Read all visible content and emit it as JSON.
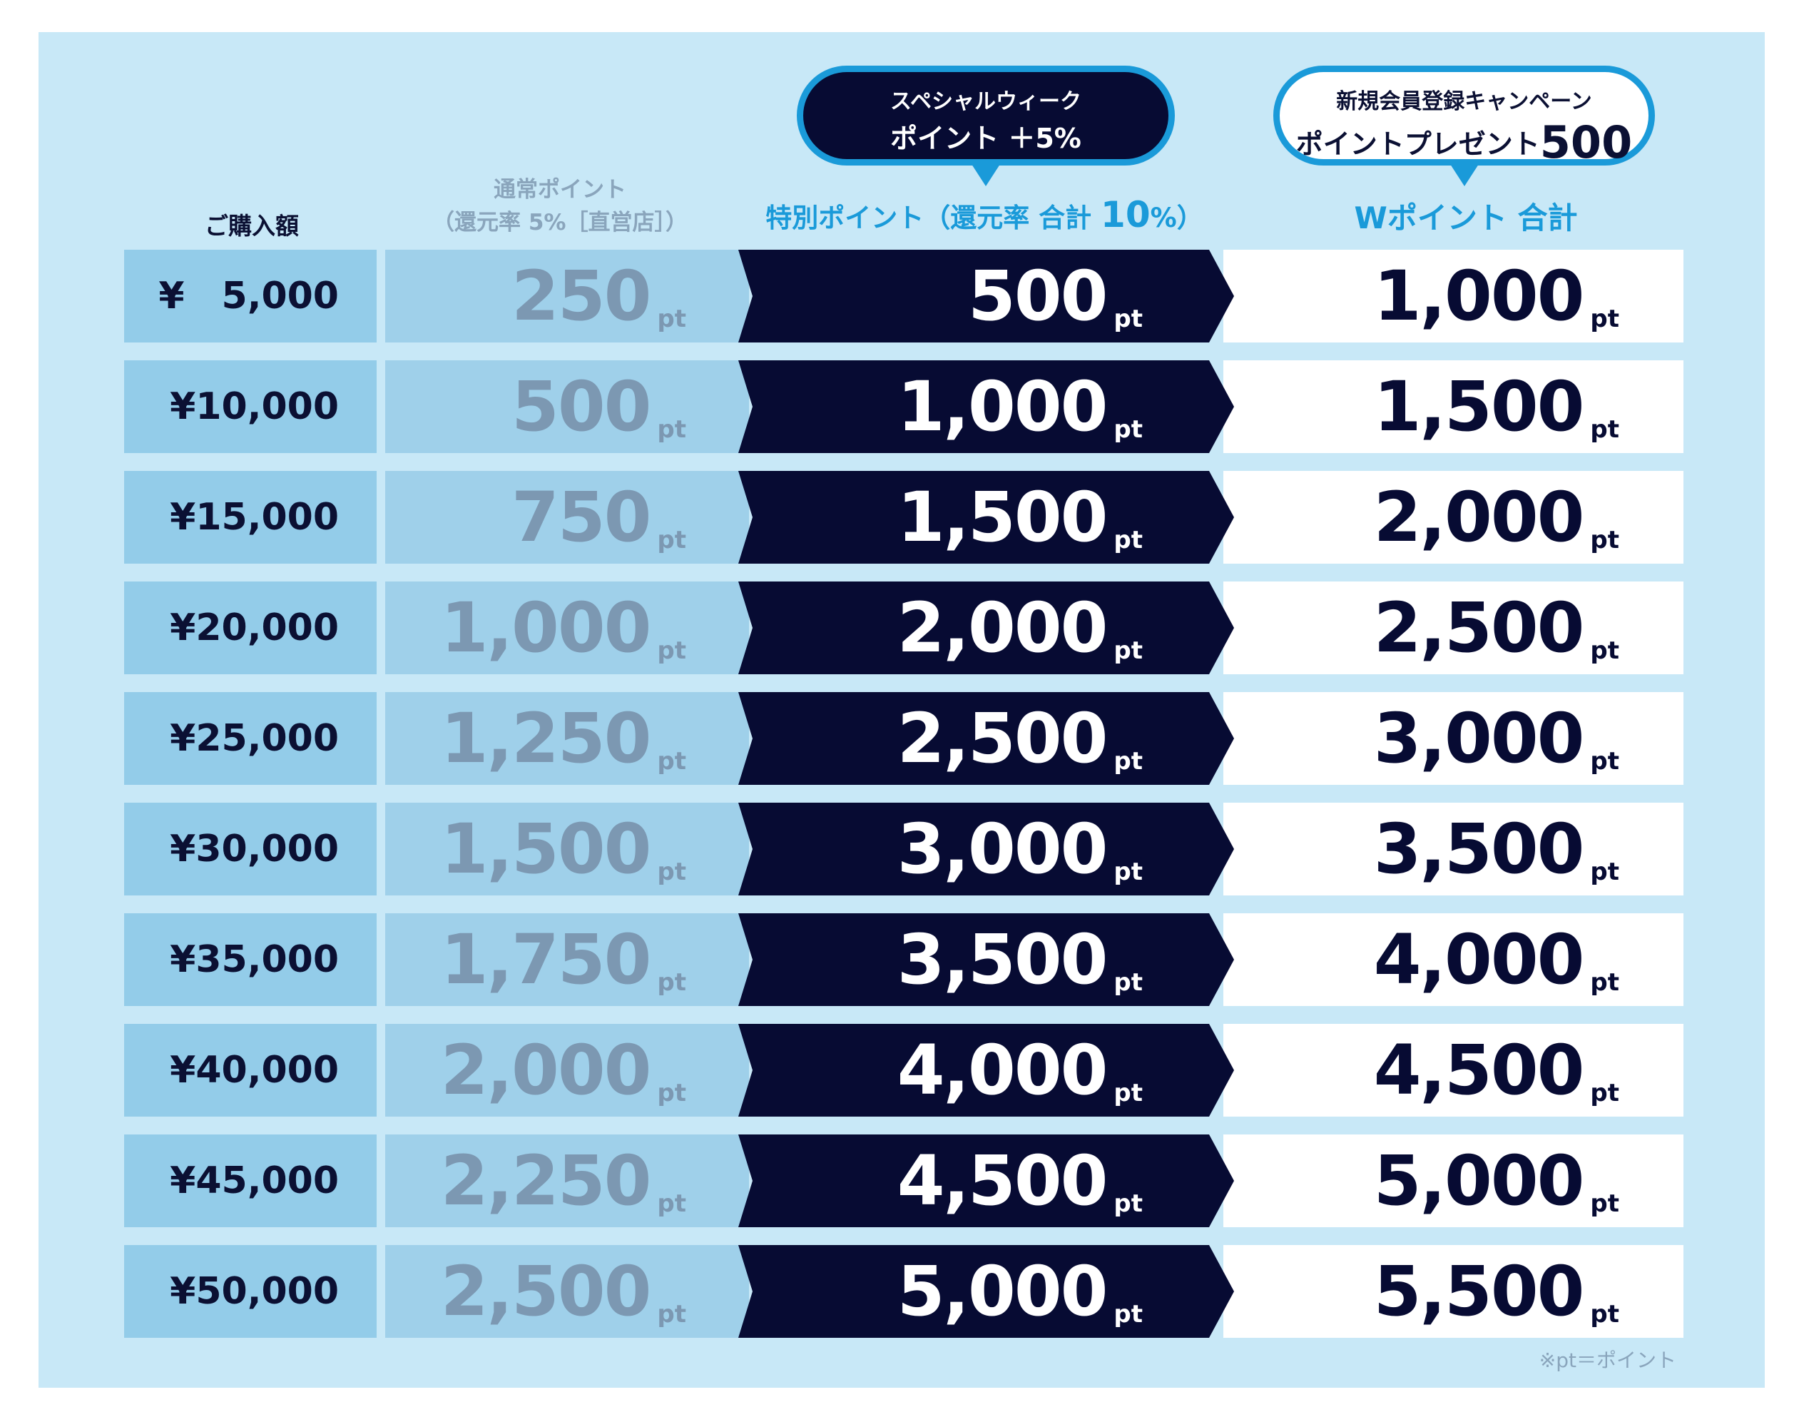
{
  "headers": {
    "purchase": "ご購入額",
    "normal_line1": "通常ポイント",
    "normal_line2": "（還元率 5%［直営店］）",
    "special_prefix": "特別ポイント（還元率 合計 ",
    "special_rate": "10",
    "special_suffix": "%）",
    "w_total": "Wポイント 合計"
  },
  "bubbles": {
    "special_week": {
      "line1": "スペシャルウィーク",
      "line2": "ポイント ＋5%"
    },
    "new_member": {
      "line1": "新規会員登録キャンペーン",
      "line2_prefix": "ポイントプレゼント",
      "line2_value": "500"
    }
  },
  "unit": "pt",
  "rows": [
    {
      "purchase": "¥　5,000",
      "normal": "250",
      "special": "500",
      "w_total": "1,000"
    },
    {
      "purchase": "¥10,000",
      "normal": "500",
      "special": "1,000",
      "w_total": "1,500"
    },
    {
      "purchase": "¥15,000",
      "normal": "750",
      "special": "1,500",
      "w_total": "2,000"
    },
    {
      "purchase": "¥20,000",
      "normal": "1,000",
      "special": "2,000",
      "w_total": "2,500"
    },
    {
      "purchase": "¥25,000",
      "normal": "1,250",
      "special": "2,500",
      "w_total": "3,000"
    },
    {
      "purchase": "¥30,000",
      "normal": "1,500",
      "special": "3,000",
      "w_total": "3,500"
    },
    {
      "purchase": "¥35,000",
      "normal": "1,750",
      "special": "3,500",
      "w_total": "4,000"
    },
    {
      "purchase": "¥40,000",
      "normal": "2,000",
      "special": "4,000",
      "w_total": "4,500"
    },
    {
      "purchase": "¥45,000",
      "normal": "2,250",
      "special": "4,500",
      "w_total": "5,000"
    },
    {
      "purchase": "¥50,000",
      "normal": "2,500",
      "special": "5,000",
      "w_total": "5,500"
    }
  ],
  "footnote": "※pt＝ポイント",
  "colors": {
    "panel": "#c8e8f7",
    "navy": "#070b33",
    "accent_blue": "#1a9ad9",
    "normal_text": "#7c98b2"
  }
}
